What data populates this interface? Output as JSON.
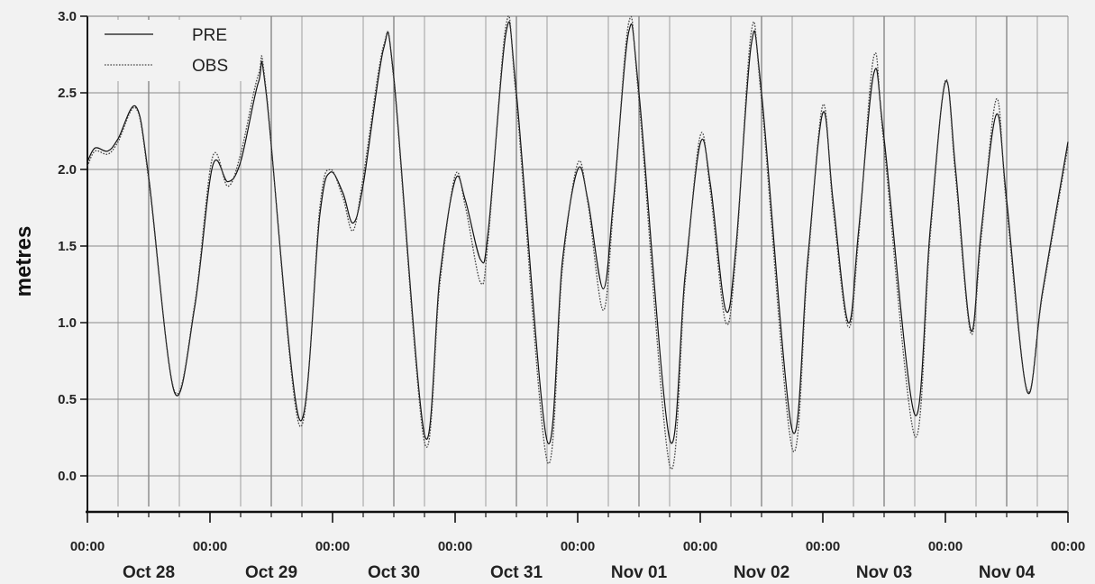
{
  "chart_data": {
    "type": "line",
    "title": "",
    "xlabel": "",
    "ylabel": "metres",
    "ylim": [
      -0.2,
      3.0
    ],
    "yticks": [
      "3.0",
      "2.5",
      "2.0",
      "1.5",
      "1.0",
      "0.5",
      "0.0"
    ],
    "ytick_values": [
      3.0,
      2.5,
      2.0,
      1.5,
      1.0,
      0.5,
      0.0
    ],
    "xlim_hours": [
      0,
      192
    ],
    "x_ticks": [
      {
        "time": "00:00",
        "date": "Oct 28"
      },
      {
        "time": "00:00",
        "date": "Oct 29"
      },
      {
        "time": "00:00",
        "date": "Oct 30"
      },
      {
        "time": "00:00",
        "date": "Oct 31"
      },
      {
        "time": "00:00",
        "date": "Nov 01"
      },
      {
        "time": "00:00",
        "date": "Nov 02"
      },
      {
        "time": "00:00",
        "date": "Nov 03"
      },
      {
        "time": "00:00",
        "date": "Nov 04"
      },
      {
        "time": "00:00",
        "date": ""
      }
    ],
    "grid": true,
    "legend": {
      "position": "top-left",
      "entries": [
        "PRE",
        "OBS"
      ]
    },
    "series": [
      {
        "name": "PRE",
        "style": "solid",
        "points": [
          [
            0,
            2.05
          ],
          [
            1.5,
            2.14
          ],
          [
            4,
            2.12
          ],
          [
            6,
            2.2
          ],
          [
            9.5,
            2.41
          ],
          [
            12,
            1.95
          ],
          [
            17,
            0.55
          ],
          [
            21,
            1.1
          ],
          [
            24.5,
            2.02
          ],
          [
            27.5,
            1.92
          ],
          [
            30,
            2.05
          ],
          [
            33.5,
            2.57
          ],
          [
            35,
            2.5
          ],
          [
            41.5,
            0.37
          ],
          [
            45.5,
            1.7
          ],
          [
            47.5,
            1.98
          ],
          [
            50,
            1.85
          ],
          [
            52,
            1.65
          ],
          [
            54,
            1.9
          ],
          [
            58,
            2.79
          ],
          [
            60,
            2.6
          ],
          [
            66,
            0.27
          ],
          [
            69,
            1.3
          ],
          [
            72,
            1.93
          ],
          [
            74,
            1.8
          ],
          [
            77,
            1.41
          ],
          [
            78.5,
            1.6
          ],
          [
            82,
            2.9
          ],
          [
            84,
            2.5
          ],
          [
            90,
            0.23
          ],
          [
            93,
            1.4
          ],
          [
            96,
            2.0
          ],
          [
            98,
            1.8
          ],
          [
            101,
            1.22
          ],
          [
            103,
            1.8
          ],
          [
            106,
            2.9
          ],
          [
            108,
            2.5
          ],
          [
            114,
            0.24
          ],
          [
            117,
            1.3
          ],
          [
            120,
            2.17
          ],
          [
            122,
            1.9
          ],
          [
            125,
            1.08
          ],
          [
            127,
            1.5
          ],
          [
            130,
            2.82
          ],
          [
            132,
            2.5
          ],
          [
            138,
            0.3
          ],
          [
            141,
            1.4
          ],
          [
            144,
            2.37
          ],
          [
            146,
            1.8
          ],
          [
            149,
            1.0
          ],
          [
            151,
            1.6
          ],
          [
            154,
            2.63
          ],
          [
            156,
            2.2
          ],
          [
            162,
            0.4
          ],
          [
            165,
            1.6
          ],
          [
            168,
            2.57
          ],
          [
            170,
            2.0
          ],
          [
            173,
            0.95
          ],
          [
            175,
            1.6
          ],
          [
            178,
            2.36
          ],
          [
            180,
            1.8
          ],
          [
            184,
            0.55
          ],
          [
            187,
            1.2
          ],
          [
            192,
            2.18
          ]
        ]
      },
      {
        "name": "OBS",
        "style": "dotted",
        "points": [
          [
            0,
            2.02
          ],
          [
            1.5,
            2.12
          ],
          [
            4,
            2.1
          ],
          [
            6,
            2.18
          ],
          [
            9.5,
            2.4
          ],
          [
            12,
            1.93
          ],
          [
            17,
            0.56
          ],
          [
            21,
            1.12
          ],
          [
            24.5,
            2.08
          ],
          [
            27.5,
            1.89
          ],
          [
            30,
            2.1
          ],
          [
            33.5,
            2.62
          ],
          [
            35,
            2.52
          ],
          [
            41.5,
            0.33
          ],
          [
            45.5,
            1.75
          ],
          [
            47.5,
            2.0
          ],
          [
            50,
            1.82
          ],
          [
            52,
            1.6
          ],
          [
            54,
            1.95
          ],
          [
            58,
            2.81
          ],
          [
            60,
            2.58
          ],
          [
            66,
            0.22
          ],
          [
            69,
            1.25
          ],
          [
            72,
            1.96
          ],
          [
            74,
            1.76
          ],
          [
            77,
            1.26
          ],
          [
            78.5,
            1.55
          ],
          [
            82,
            2.95
          ],
          [
            84,
            2.45
          ],
          [
            90,
            0.1
          ],
          [
            93,
            1.35
          ],
          [
            96,
            2.04
          ],
          [
            98,
            1.78
          ],
          [
            101,
            1.08
          ],
          [
            103,
            1.75
          ],
          [
            106,
            2.96
          ],
          [
            108,
            2.45
          ],
          [
            114,
            0.07
          ],
          [
            117,
            1.25
          ],
          [
            120,
            2.22
          ],
          [
            122,
            1.85
          ],
          [
            125,
            1.0
          ],
          [
            127,
            1.45
          ],
          [
            130,
            2.9
          ],
          [
            132,
            2.45
          ],
          [
            138,
            0.18
          ],
          [
            141,
            1.35
          ],
          [
            144,
            2.42
          ],
          [
            146,
            1.75
          ],
          [
            149,
            0.97
          ],
          [
            151,
            1.55
          ],
          [
            154,
            2.74
          ],
          [
            156,
            2.15
          ],
          [
            162,
            0.26
          ],
          [
            165,
            1.55
          ],
          [
            168,
            2.58
          ],
          [
            170,
            1.95
          ],
          [
            173,
            0.93
          ],
          [
            175,
            1.55
          ],
          [
            178,
            2.46
          ],
          [
            180,
            1.75
          ],
          [
            184,
            0.56
          ],
          [
            187,
            1.18
          ],
          [
            192,
            2.15
          ]
        ]
      }
    ]
  }
}
